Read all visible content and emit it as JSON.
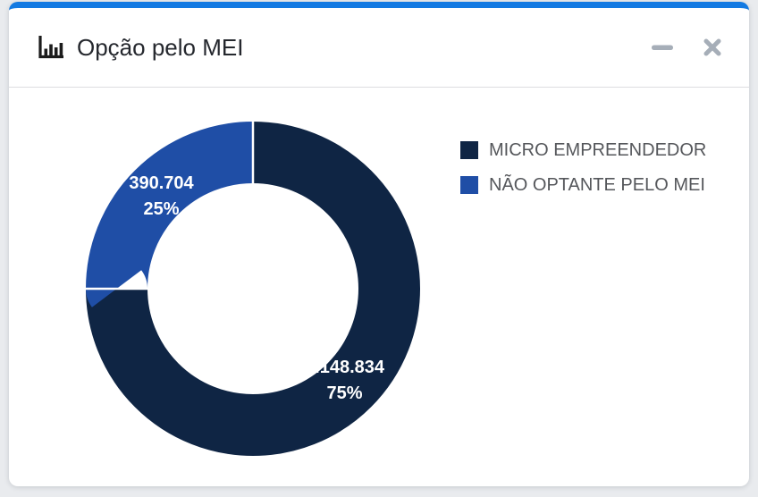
{
  "window": {
    "title": "Opção pelo MEI"
  },
  "theme": {
    "accent_bar": "#137ae2",
    "page_bg": "#e9ebee",
    "card_bg": "#ffffff",
    "title_color": "#25282e",
    "legend_text": "#55575b",
    "control_icon": "#a6aeb8",
    "divider": "#dcdde0",
    "icon_color": "#1c1c1c"
  },
  "chart_data": {
    "type": "pie",
    "donut": true,
    "title": "Opção pelo MEI",
    "legend_position": "right",
    "start_angle_deg": 0,
    "direction": "clockwise",
    "separator_color": "#ffffff",
    "label_text_color": "#ffffff",
    "segments": [
      {
        "label": "MICRO EMPREENDEDOR",
        "value": 1148834,
        "value_display": "1.148.834",
        "percent": 75,
        "percent_display": "75%",
        "color": "#0f2544"
      },
      {
        "label": "NÃO OPTANTE PELO MEI",
        "value": 390704,
        "value_display": "390.704",
        "percent": 25,
        "percent_display": "25%",
        "color": "#1f4ea6"
      }
    ]
  }
}
